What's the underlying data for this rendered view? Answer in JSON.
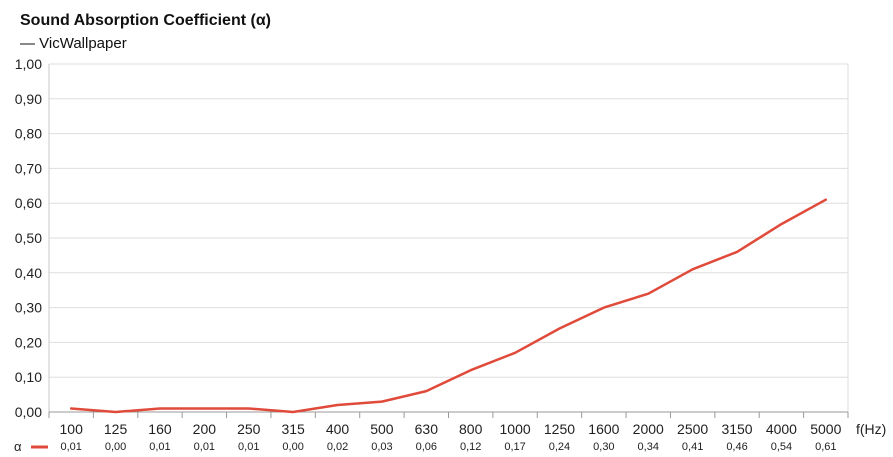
{
  "chart_data": {
    "type": "line",
    "title": "Sound Absorption Coefficient (α)",
    "subtitle": "— VicWallpaper",
    "xlabel": "f(Hz)",
    "ylabel": "",
    "ylim": [
      0,
      1
    ],
    "yticks": [
      "0,00",
      "0,10",
      "0,20",
      "0,30",
      "0,40",
      "0,50",
      "0,60",
      "0,70",
      "0,80",
      "0,90",
      "1,00"
    ],
    "categories": [
      "100",
      "125",
      "160",
      "200",
      "250",
      "315",
      "400",
      "500",
      "630",
      "800",
      "1000",
      "1250",
      "1600",
      "2000",
      "2500",
      "3150",
      "4000",
      "5000"
    ],
    "series": [
      {
        "name": "α",
        "color": "#e04a3a",
        "values": [
          0.01,
          0.0,
          0.01,
          0.01,
          0.01,
          0.0,
          0.02,
          0.03,
          0.06,
          0.12,
          0.17,
          0.24,
          0.3,
          0.34,
          0.41,
          0.46,
          0.54,
          0.61
        ],
        "value_labels": [
          "0,01",
          "0,00",
          "0,01",
          "0,01",
          "0,01",
          "0,00",
          "0,02",
          "0,03",
          "0,06",
          "0,12",
          "0,17",
          "0,24",
          "0,30",
          "0,34",
          "0,41",
          "0,46",
          "0,54",
          "0,61"
        ]
      }
    ],
    "grid": true
  }
}
